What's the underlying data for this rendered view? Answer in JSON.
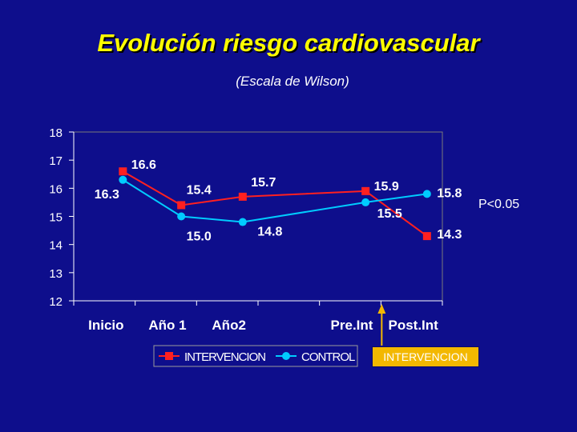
{
  "chart_data": {
    "type": "line",
    "title": "Evolución riesgo cardiovascular",
    "subtitle": "(Escala de Wilson)",
    "categories": [
      "Inicio",
      "Año 1",
      "Año2",
      "Pre.Int",
      "Post.Int"
    ],
    "ylim": [
      12,
      18
    ],
    "yticks": [
      "12",
      "13",
      "14",
      "15",
      "16",
      "17",
      "18"
    ],
    "grid": false,
    "legend_position": "bottom",
    "series": [
      {
        "name": "INTERVENCION",
        "color": "#ff2020",
        "marker": "square",
        "x": [
          0.8,
          1.75,
          2.75,
          4.75,
          5.75
        ],
        "values": [
          16.6,
          15.4,
          15.7,
          15.9,
          14.3
        ],
        "labels": [
          "16.6",
          "15.4",
          "15.7",
          "15.9",
          "14.3"
        ]
      },
      {
        "name": "CONTROL",
        "color": "#00ccff",
        "marker": "circle",
        "x": [
          0.8,
          1.75,
          2.75,
          4.75,
          5.75
        ],
        "values": [
          16.3,
          15.0,
          14.8,
          15.5,
          15.8
        ],
        "labels": [
          "16.3",
          "15.0",
          "14.8",
          "15.5",
          "15.8"
        ]
      }
    ],
    "annotations": [
      {
        "text": "P<0.05"
      },
      {
        "text": "INTERVENCION",
        "x": 5.0
      }
    ]
  }
}
